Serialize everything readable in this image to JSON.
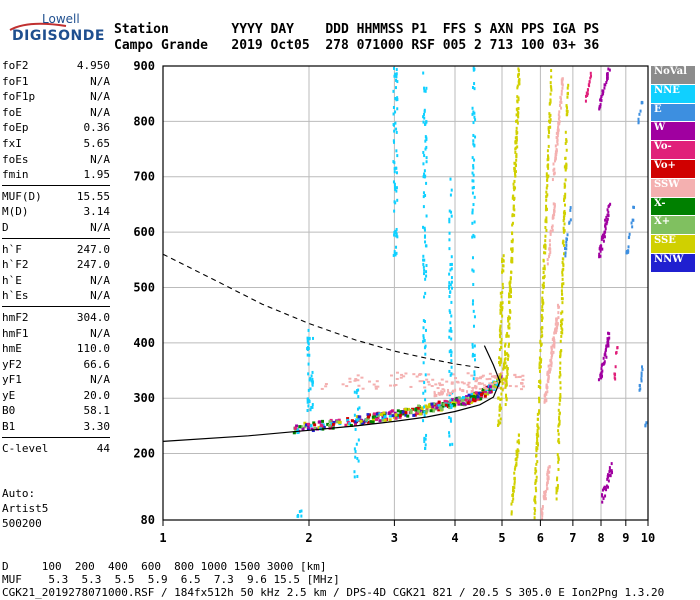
{
  "logo": {
    "line1": "Lowell",
    "line2": "DIGISONDE"
  },
  "header": {
    "labels": [
      "Station",
      "YYYY",
      "DAY",
      "DDD",
      "HHMMSS",
      "P1",
      "FFS",
      "S",
      "AXN",
      "PPS",
      "IGA",
      "PS"
    ],
    "values": [
      "Campo Grande",
      "2019",
      "Oct05",
      "278",
      "071000",
      "RSF",
      "005",
      "2",
      "713",
      "100",
      "03+",
      "36"
    ],
    "line1": "Station        YYYY DAY    DDD HHMMSS P1  FFS S AXN PPS IGA PS",
    "line2": "Campo Grande   2019 Oct05  278 071000 RSF 005 2 713 100 03+ 36"
  },
  "params": {
    "group1": [
      {
        "k": "foF2",
        "v": "4.950"
      },
      {
        "k": "foF1",
        "v": "N/A"
      },
      {
        "k": "foF1p",
        "v": "N/A"
      },
      {
        "k": "foE",
        "v": "N/A"
      },
      {
        "k": "foEp",
        "v": "0.36"
      },
      {
        "k": "fxI",
        "v": "5.65"
      },
      {
        "k": "foEs",
        "v": "N/A"
      },
      {
        "k": "fmin",
        "v": "1.95"
      }
    ],
    "group2": [
      {
        "k": "MUF(D)",
        "v": "15.55"
      },
      {
        "k": "M(D)",
        "v": "3.14"
      },
      {
        "k": "D",
        "v": "N/A"
      }
    ],
    "group3": [
      {
        "k": "h`F",
        "v": "247.0"
      },
      {
        "k": "h`F2",
        "v": "247.0"
      },
      {
        "k": "h`E",
        "v": "N/A"
      },
      {
        "k": "h`Es",
        "v": "N/A"
      }
    ],
    "group4": [
      {
        "k": "hmF2",
        "v": "304.0"
      },
      {
        "k": "hmF1",
        "v": "N/A"
      },
      {
        "k": "hmE",
        "v": "110.0"
      },
      {
        "k": "yF2",
        "v": "66.6"
      },
      {
        "k": "yF1",
        "v": "N/A"
      },
      {
        "k": "yE",
        "v": "20.0"
      },
      {
        "k": "B0",
        "v": "58.1"
      },
      {
        "k": "B1",
        "v": "3.30"
      }
    ],
    "group5": [
      {
        "k": "C-level",
        "v": "44"
      }
    ]
  },
  "auto": {
    "line1": "Auto:",
    "line2": "Artist5",
    "line3": "500200"
  },
  "legend": [
    {
      "label": "NoVal",
      "color": "#8c8c8c"
    },
    {
      "label": "NNE",
      "color": "#10d0ff"
    },
    {
      "label": "E",
      "color": "#3d8fe0"
    },
    {
      "label": "W",
      "color": "#a000a0"
    },
    {
      "label": "Vo-",
      "color": "#e0207a"
    },
    {
      "label": "Vo+",
      "color": "#d00000"
    },
    {
      "label": "SSW",
      "color": "#f4b0b0"
    },
    {
      "label": "X-",
      "color": "#008000"
    },
    {
      "label": "X+",
      "color": "#80c060"
    },
    {
      "label": "SSE",
      "color": "#d0d000"
    },
    {
      "label": "NNW",
      "color": "#2020d0"
    }
  ],
  "footer": {
    "line1": "D     100  200  400  600  800 1000 1500 3000 [km]",
    "line2": "MUF    5.3  5.3  5.5  5.9  6.5  7.3  9.6 15.5 [MHz]",
    "line3": "CGK21_2019278071000.RSF / 184fx512h 50 kHz 2.5 km / DPS-4D CGK21 821 / 20.5 S 305.0 E Ion2Png 1.3.20"
  },
  "chart_data": {
    "type": "scatter",
    "x_ticks": [
      "1",
      "2",
      "3",
      "4",
      "5",
      "6",
      "7",
      "8",
      "9",
      "10"
    ],
    "y_ticks": [
      "80",
      "200",
      "300",
      "400",
      "500",
      "600",
      "700",
      "800",
      "900"
    ],
    "xlim": [
      1,
      10
    ],
    "ylim": [
      80,
      900
    ],
    "x_scale": "log",
    "grid": true,
    "series": [
      {
        "name": "X-",
        "color": "#008000"
      },
      {
        "name": "Vo-",
        "color": "#e0207a"
      },
      {
        "name": "W",
        "color": "#a000a0"
      },
      {
        "name": "NNE",
        "color": "#10d0ff"
      },
      {
        "name": "SSE",
        "color": "#d0d000"
      },
      {
        "name": "SSW",
        "color": "#f4b0b0"
      }
    ],
    "traces": {
      "o_trace": [
        [
          1.9,
          250
        ],
        [
          2.2,
          258
        ],
        [
          2.6,
          268
        ],
        [
          3.0,
          276
        ],
        [
          3.4,
          285
        ],
        [
          3.8,
          292
        ],
        [
          4.2,
          300
        ],
        [
          4.5,
          310
        ],
        [
          4.8,
          325
        ]
      ],
      "profile_solid": [
        [
          1.0,
          222
        ],
        [
          1.5,
          232
        ],
        [
          2.0,
          242
        ],
        [
          2.5,
          250
        ],
        [
          3.0,
          258
        ],
        [
          3.5,
          266
        ],
        [
          4.0,
          276
        ],
        [
          4.5,
          288
        ],
        [
          4.8,
          302
        ],
        [
          4.95,
          330
        ],
        [
          4.8,
          360
        ],
        [
          4.6,
          395
        ]
      ],
      "profile_dashed": [
        [
          1.0,
          560
        ],
        [
          1.3,
          510
        ],
        [
          1.6,
          470
        ],
        [
          2.0,
          435
        ],
        [
          2.5,
          405
        ],
        [
          3.0,
          385
        ],
        [
          3.5,
          372
        ],
        [
          4.0,
          362
        ],
        [
          4.5,
          355
        ]
      ]
    }
  }
}
